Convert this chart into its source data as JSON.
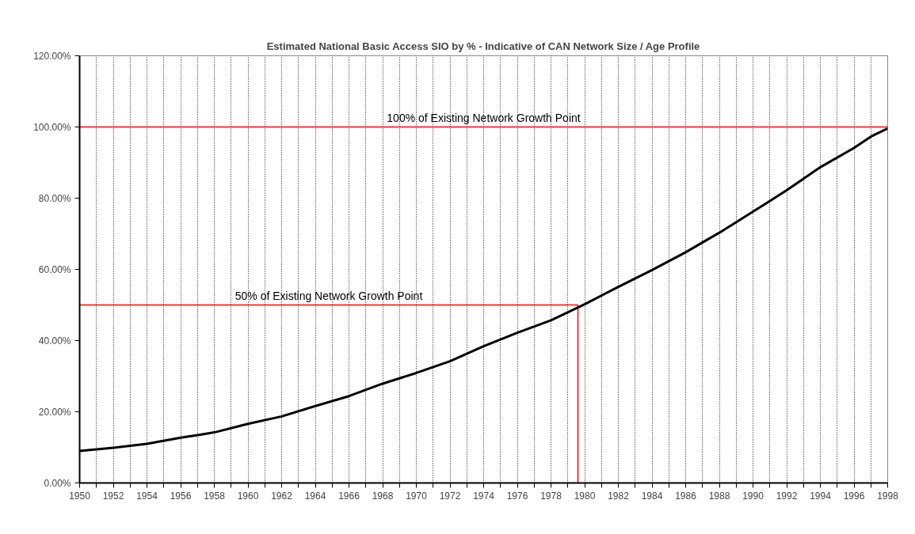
{
  "chart_data": {
    "type": "line",
    "title": "Estimated National Basic Access SIO by % - Indicative of CAN Network Size / Age Profile",
    "x": [
      1950,
      1952,
      1954,
      1956,
      1958,
      1960,
      1962,
      1964,
      1966,
      1968,
      1970,
      1972,
      1974,
      1976,
      1978,
      1980,
      1982,
      1984,
      1986,
      1988,
      1990,
      1992,
      1994,
      1996,
      1997,
      1998
    ],
    "series": [
      {
        "color": "#000000",
        "values": [
          9.0,
          9.9,
          11.0,
          12.7,
          14.2,
          16.6,
          18.7,
          21.6,
          24.4,
          27.9,
          30.9,
          34.2,
          38.4,
          42.2,
          45.7,
          50.2,
          55.1,
          59.8,
          64.8,
          70.3,
          76.2,
          82.2,
          88.7,
          94.1,
          97.3,
          99.6
        ]
      }
    ],
    "xlim": [
      1950,
      1998
    ],
    "xticks": [
      1950,
      {
        "value": 1951,
        "label": null
      },
      1952,
      {
        "value": 1953,
        "label": null
      },
      1954,
      {
        "value": 1955,
        "label": null
      },
      1956,
      {
        "value": 1957,
        "label": null
      },
      1958,
      {
        "value": 1959,
        "label": null
      },
      1960,
      {
        "value": 1961,
        "label": null
      },
      1962,
      {
        "value": 1963,
        "label": null
      },
      1964,
      {
        "value": 1965,
        "label": null
      },
      1966,
      {
        "value": 1967,
        "label": null
      },
      1968,
      {
        "value": 1969,
        "label": null
      },
      1970,
      {
        "value": 1971,
        "label": null
      },
      1972,
      {
        "value": 1973,
        "label": null
      },
      1974,
      {
        "value": 1975,
        "label": null
      },
      1976,
      {
        "value": 1977,
        "label": null
      },
      1978,
      {
        "value": 1979,
        "label": null
      },
      1980,
      {
        "value": 1981,
        "label": null
      },
      1982,
      {
        "value": 1983,
        "label": null
      },
      1984,
      {
        "value": 1985,
        "label": null
      },
      1986,
      {
        "value": 1987,
        "label": null
      },
      1988,
      {
        "value": 1989,
        "label": null
      },
      1990,
      {
        "value": 1991,
        "label": null
      },
      1992,
      {
        "value": 1993,
        "label": null
      },
      1994,
      {
        "value": 1995,
        "label": null
      },
      1996,
      {
        "value": 1997,
        "label": null
      },
      1998
    ],
    "ylim": [
      0,
      120
    ],
    "yticks": [
      {
        "value": 0,
        "label": "0.00%"
      },
      {
        "value": 20,
        "label": "20.00%"
      },
      {
        "value": 40,
        "label": "40.00%"
      },
      {
        "value": 60,
        "label": "60.00%"
      },
      {
        "value": 80,
        "label": "80.00%"
      },
      {
        "value": 100,
        "label": "100.00%"
      },
      {
        "value": 120,
        "label": "120.00%"
      }
    ],
    "grid": "x",
    "marker": "none",
    "line_style": "solid",
    "ref_lines": [
      {
        "axis": "y",
        "value": 100,
        "label": "100% of Existing Network Growth Point",
        "color": "#ff0000"
      },
      {
        "axis": "y",
        "value": 50,
        "label": "50% of Existing Network Growth Point",
        "color": "#ff0000"
      },
      {
        "axis": "x",
        "value": 1979.6,
        "color": "#ff0000"
      }
    ]
  }
}
